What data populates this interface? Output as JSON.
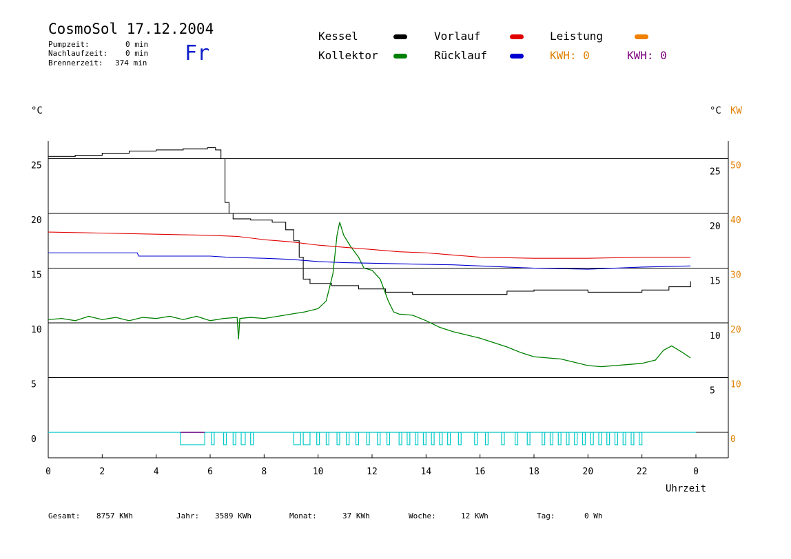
{
  "header": {
    "title": "CosmoSol 17.12.2004",
    "day": "Fr",
    "stats": [
      {
        "label": "Pumpzeit:",
        "value": "0 min"
      },
      {
        "label": "Nachlaufzeit:",
        "value": "0 min"
      },
      {
        "label": "Brennerzeit:",
        "value": "374 min"
      }
    ]
  },
  "legend": {
    "kessel": "Kessel",
    "kollektor": "Kollektor",
    "vorlauf": "Vorlauf",
    "ruecklauf": "Rücklauf",
    "leistung": "Leistung",
    "kwh_orange": "KWH: 0",
    "kwh_purple": "KWH: 0"
  },
  "colors": {
    "kessel": "#000000",
    "kollektor": "#008000",
    "vorlauf": "#e00000",
    "ruecklauf": "#0000d0",
    "leistung": "#f08000",
    "kwh_purple": "#800080",
    "pump": "#00c8c8",
    "kw_axis": "#e08000",
    "day": "#1020c8"
  },
  "axes": {
    "left_unit": "°C",
    "right_unit": "°C",
    "right_unit2": "KW",
    "xlabel": "Uhrzeit"
  },
  "footer": [
    {
      "label": "Gesamt:",
      "value": "8757 KWh"
    },
    {
      "label": "Jahr:",
      "value": "3589 KWh"
    },
    {
      "label": "Monat:",
      "value": "37 KWh"
    },
    {
      "label": "Woche:",
      "value": "12 KWh"
    },
    {
      "label": "Tag:",
      "value": "0 Wh"
    }
  ],
  "chart_data": {
    "type": "line",
    "xlabel": "Uhrzeit",
    "ylabel": "°C",
    "xlim": [
      0,
      24
    ],
    "ylim": [
      -2,
      27
    ],
    "x_ticks": [
      "0",
      "2",
      "4",
      "6",
      "8",
      "10",
      "12",
      "14",
      "16",
      "18",
      "20",
      "22",
      "0"
    ],
    "y_ticks": [
      "0",
      "5",
      "10",
      "15",
      "20",
      "25"
    ],
    "y2_ticks": [
      "0",
      "10",
      "20",
      "30",
      "40",
      "50"
    ],
    "grid": true,
    "series": [
      {
        "name": "Kessel",
        "color": "#000000",
        "step": true,
        "points": [
          [
            0,
            25.2
          ],
          [
            1,
            25.3
          ],
          [
            2,
            25.5
          ],
          [
            3,
            25.7
          ],
          [
            4,
            25.8
          ],
          [
            5,
            25.9
          ],
          [
            5.9,
            26.0
          ],
          [
            6.2,
            25.8
          ],
          [
            6.4,
            25.0
          ],
          [
            6.55,
            21.0
          ],
          [
            6.7,
            20.0
          ],
          [
            6.85,
            19.5
          ],
          [
            7.5,
            19.4
          ],
          [
            8.3,
            19.2
          ],
          [
            8.8,
            18.5
          ],
          [
            9.1,
            17.5
          ],
          [
            9.3,
            16.0
          ],
          [
            9.45,
            14.0
          ],
          [
            9.7,
            13.6
          ],
          [
            10.5,
            13.4
          ],
          [
            11.5,
            13.1
          ],
          [
            12.5,
            12.8
          ],
          [
            13.5,
            12.6
          ],
          [
            15,
            12.6
          ],
          [
            17,
            12.9
          ],
          [
            18,
            13.0
          ],
          [
            19,
            13.0
          ],
          [
            20,
            12.8
          ],
          [
            21,
            12.8
          ],
          [
            22,
            13.0
          ],
          [
            23,
            13.3
          ],
          [
            23.8,
            13.8
          ]
        ]
      },
      {
        "name": "Kollektor",
        "color": "#008000",
        "points": [
          [
            0,
            10.3
          ],
          [
            0.5,
            10.4
          ],
          [
            1,
            10.2
          ],
          [
            1.5,
            10.6
          ],
          [
            2,
            10.3
          ],
          [
            2.5,
            10.5
          ],
          [
            3,
            10.2
          ],
          [
            3.5,
            10.5
          ],
          [
            4,
            10.4
          ],
          [
            4.5,
            10.6
          ],
          [
            5,
            10.3
          ],
          [
            5.5,
            10.6
          ],
          [
            6,
            10.2
          ],
          [
            6.5,
            10.4
          ],
          [
            7,
            10.5
          ],
          [
            7.05,
            8.5
          ],
          [
            7.1,
            10.4
          ],
          [
            7.5,
            10.5
          ],
          [
            8,
            10.4
          ],
          [
            8.5,
            10.6
          ],
          [
            9,
            10.8
          ],
          [
            9.5,
            11.0
          ],
          [
            10,
            11.3
          ],
          [
            10.3,
            12.0
          ],
          [
            10.55,
            14.5
          ],
          [
            10.7,
            18.0
          ],
          [
            10.8,
            19.2
          ],
          [
            10.95,
            18.0
          ],
          [
            11.2,
            17.0
          ],
          [
            11.5,
            16.0
          ],
          [
            11.7,
            15.0
          ],
          [
            12.0,
            14.8
          ],
          [
            12.3,
            14.0
          ],
          [
            12.6,
            12.0
          ],
          [
            12.8,
            11.0
          ],
          [
            13,
            10.8
          ],
          [
            13.5,
            10.7
          ],
          [
            14,
            10.2
          ],
          [
            14.5,
            9.6
          ],
          [
            15,
            9.2
          ],
          [
            15.5,
            8.9
          ],
          [
            16,
            8.6
          ],
          [
            16.5,
            8.2
          ],
          [
            17,
            7.8
          ],
          [
            17.5,
            7.3
          ],
          [
            18,
            6.9
          ],
          [
            18.5,
            6.8
          ],
          [
            19,
            6.7
          ],
          [
            19.5,
            6.4
          ],
          [
            20,
            6.1
          ],
          [
            20.5,
            6.0
          ],
          [
            21,
            6.1
          ],
          [
            21.5,
            6.2
          ],
          [
            22,
            6.3
          ],
          [
            22.5,
            6.6
          ],
          [
            22.8,
            7.5
          ],
          [
            23.1,
            7.9
          ],
          [
            23.5,
            7.3
          ],
          [
            23.8,
            6.8
          ]
        ]
      },
      {
        "name": "Vorlauf",
        "color": "#e00000",
        "points": [
          [
            0,
            18.3
          ],
          [
            2,
            18.2
          ],
          [
            4,
            18.1
          ],
          [
            6,
            18.0
          ],
          [
            7,
            17.9
          ],
          [
            8,
            17.6
          ],
          [
            9,
            17.4
          ],
          [
            10,
            17.1
          ],
          [
            11,
            16.9
          ],
          [
            12,
            16.7
          ],
          [
            13,
            16.5
          ],
          [
            14,
            16.4
          ],
          [
            15,
            16.2
          ],
          [
            16,
            16.0
          ],
          [
            18,
            15.9
          ],
          [
            20,
            15.9
          ],
          [
            22,
            16.0
          ],
          [
            23.8,
            16.0
          ]
        ]
      },
      {
        "name": "Rücklauf",
        "color": "#0000d0",
        "points": [
          [
            0,
            16.4
          ],
          [
            3.3,
            16.4
          ],
          [
            3.35,
            16.1
          ],
          [
            6,
            16.1
          ],
          [
            6.6,
            16.0
          ],
          [
            8,
            15.9
          ],
          [
            9,
            15.8
          ],
          [
            10,
            15.6
          ],
          [
            11,
            15.5
          ],
          [
            13,
            15.4
          ],
          [
            15,
            15.3
          ],
          [
            16,
            15.2
          ],
          [
            18,
            15.0
          ],
          [
            20,
            14.9
          ],
          [
            22,
            15.1
          ],
          [
            23.8,
            15.2
          ]
        ]
      }
    ],
    "pump_segments": [
      [
        4.9,
        5.8
      ],
      [
        6.05,
        6.15
      ],
      [
        6.5,
        6.6
      ],
      [
        6.85,
        6.95
      ],
      [
        7.15,
        7.3
      ],
      [
        7.5,
        7.6
      ],
      [
        9.1,
        9.35
      ],
      [
        9.45,
        9.7
      ],
      [
        9.95,
        10.05
      ],
      [
        10.3,
        10.4
      ],
      [
        10.7,
        10.8
      ],
      [
        11.05,
        11.15
      ],
      [
        11.4,
        11.5
      ],
      [
        11.8,
        11.9
      ],
      [
        12.2,
        12.3
      ],
      [
        12.55,
        12.65
      ],
      [
        13.0,
        13.1
      ],
      [
        13.3,
        13.4
      ],
      [
        13.6,
        13.7
      ],
      [
        13.9,
        14.0
      ],
      [
        14.2,
        14.3
      ],
      [
        14.5,
        14.6
      ],
      [
        14.8,
        14.9
      ],
      [
        15.2,
        15.3
      ],
      [
        15.8,
        15.9
      ],
      [
        16.2,
        16.3
      ],
      [
        16.8,
        16.9
      ],
      [
        17.3,
        17.4
      ],
      [
        17.75,
        17.85
      ],
      [
        18.3,
        18.4
      ],
      [
        18.6,
        18.7
      ],
      [
        18.9,
        19.0
      ],
      [
        19.2,
        19.3
      ],
      [
        19.5,
        19.6
      ],
      [
        19.8,
        19.9
      ],
      [
        20.1,
        20.2
      ],
      [
        20.4,
        20.5
      ],
      [
        20.7,
        20.8
      ],
      [
        21.0,
        21.1
      ],
      [
        21.3,
        21.4
      ],
      [
        21.6,
        21.7
      ],
      [
        21.9,
        22.0
      ]
    ],
    "burner": {
      "start": 4.9,
      "end": 5.8,
      "color": "#800080"
    }
  }
}
